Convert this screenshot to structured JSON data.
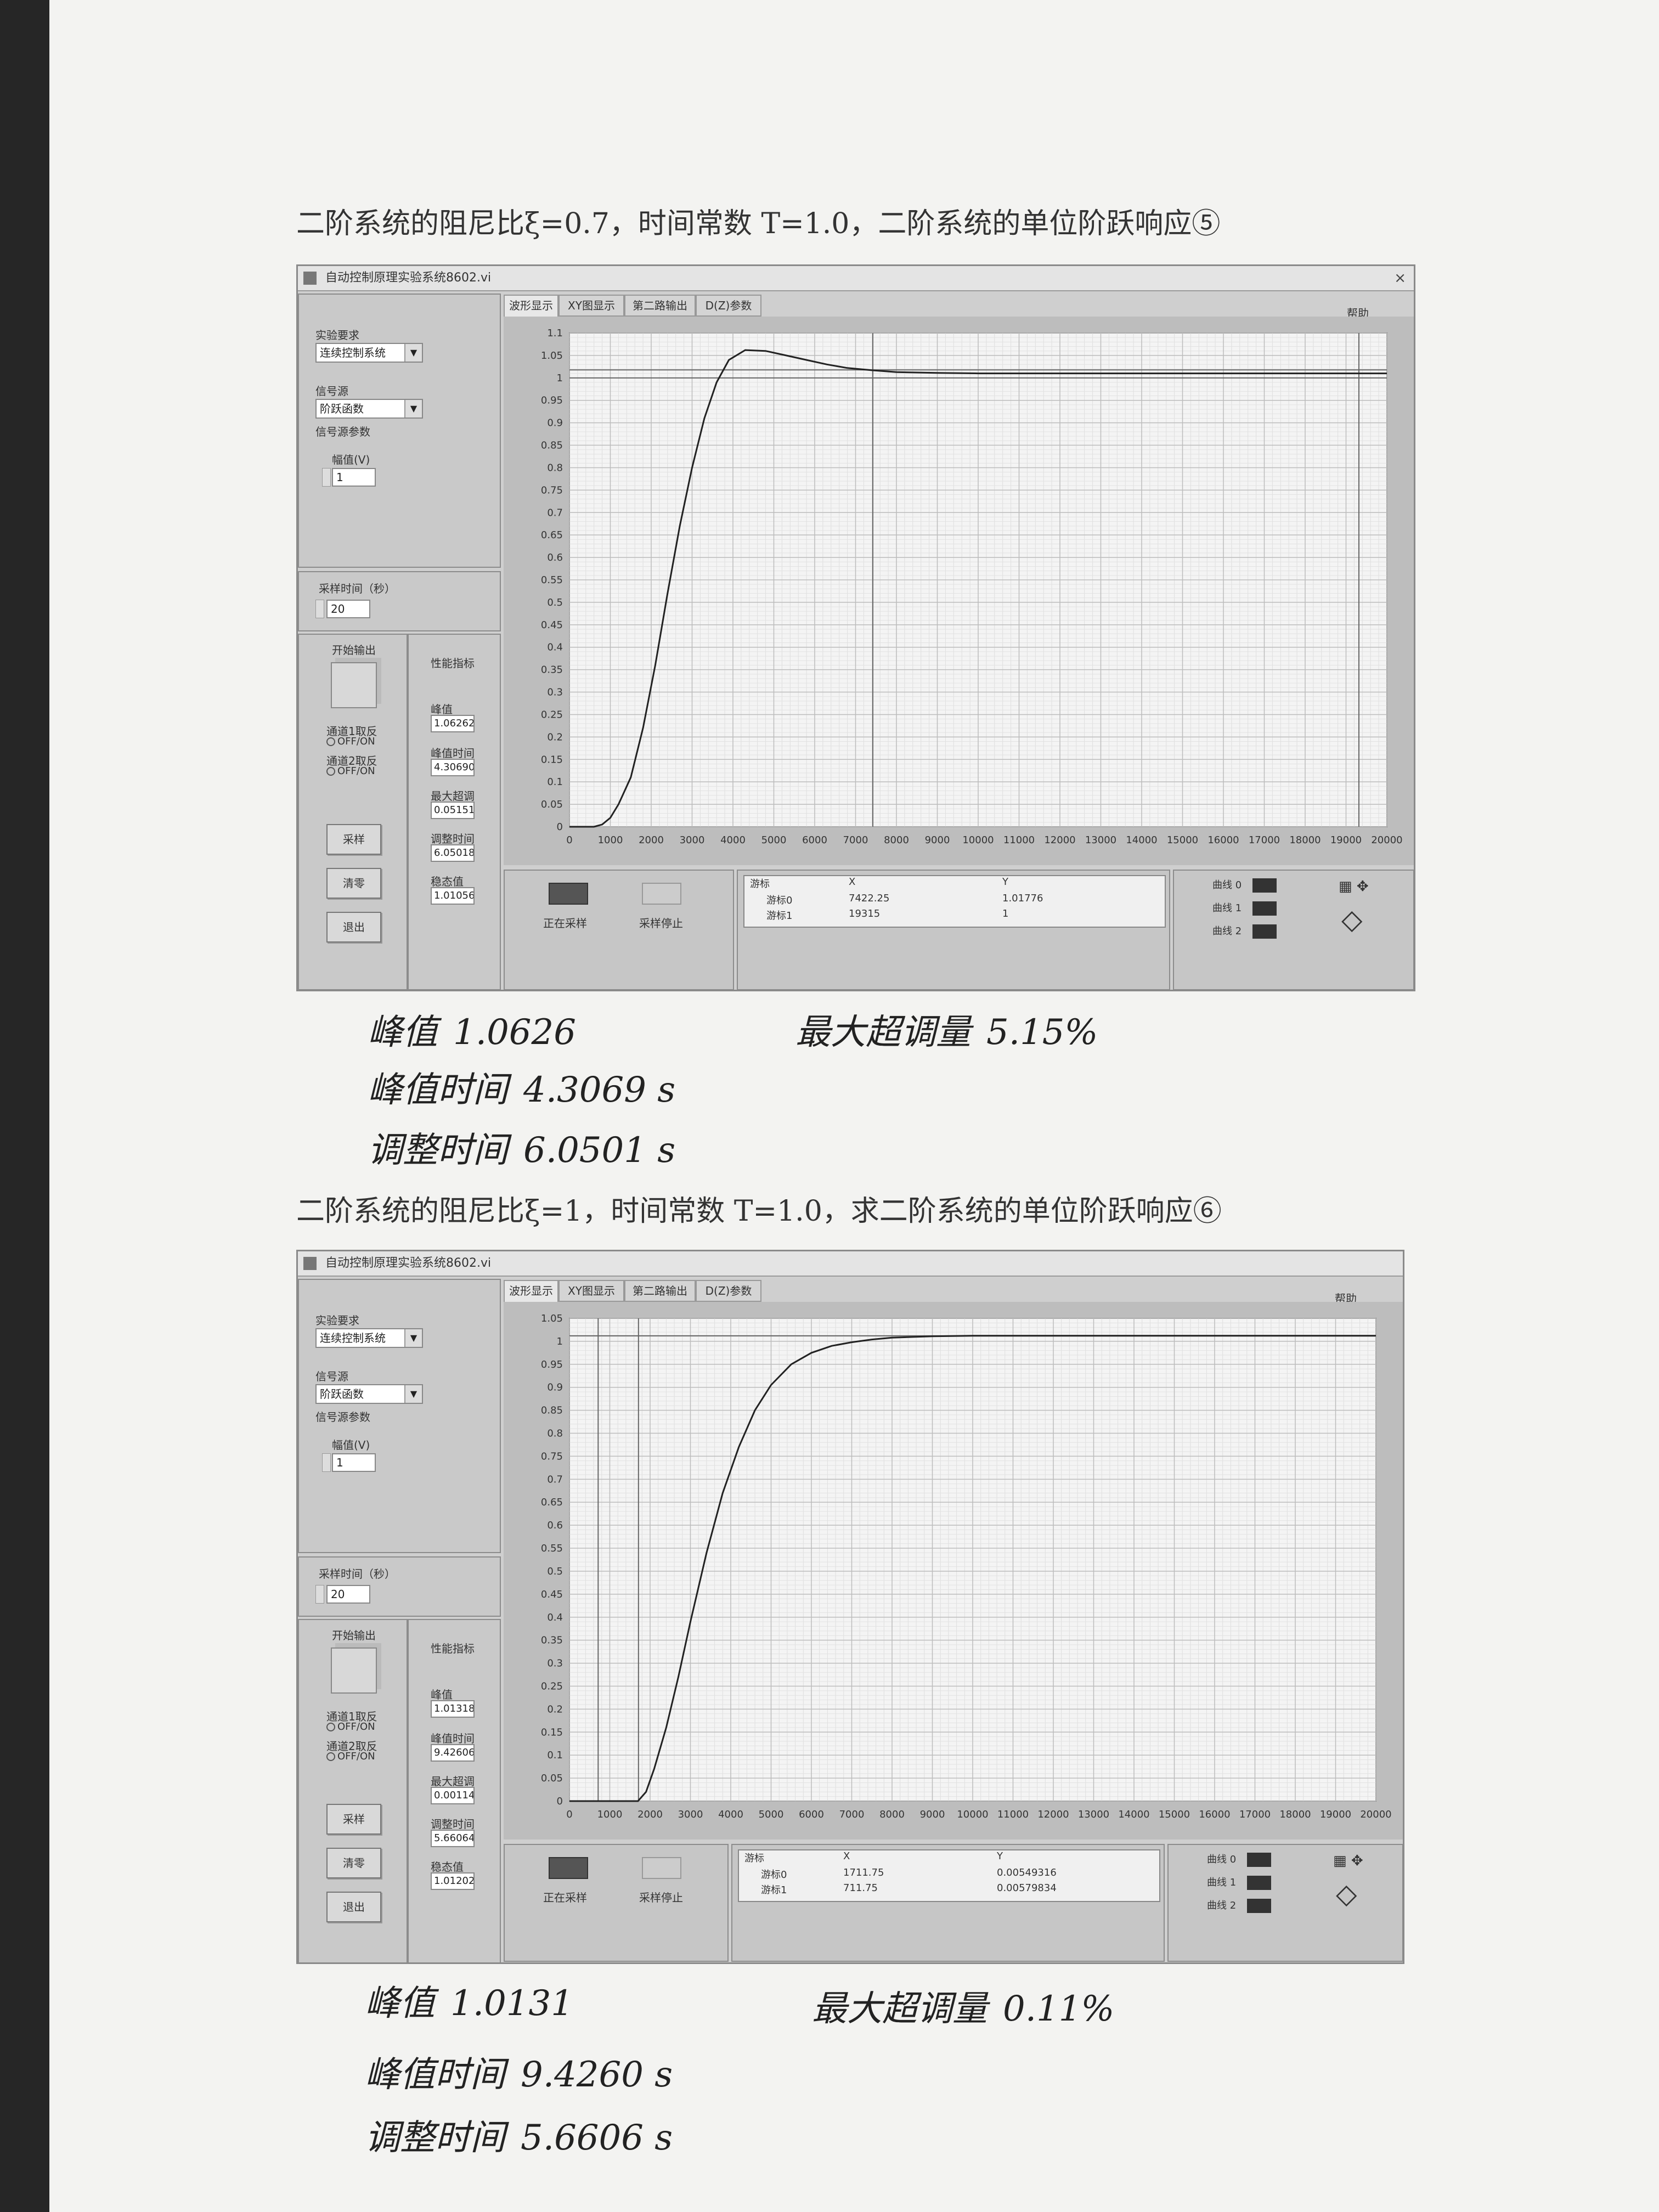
{
  "sections": [
    {
      "heading": "二阶系统的阻尼比ξ=0.7，时间常数 T=1.0，二阶系统的单位阶跃响应⑤",
      "window": {
        "title": "自动控制原理实验系统8602.vi",
        "close": "×",
        "tabs": [
          "波形显示",
          "XY图显示",
          "第二路输出",
          "D(Z)参数"
        ],
        "help_label": "帮助",
        "experiment_label": "实验要求",
        "experiment_value": "连续控制系统",
        "source_label": "信号源",
        "source_value": "阶跃函数",
        "source_params_label": "信号源参数",
        "amplitude_label": "幅值(V)",
        "amplitude_value": "1",
        "sample_time_label": "采样时间（秒）",
        "sample_time_value": "20",
        "start_output_label": "开始输出",
        "ch1_label": "通道1取反",
        "ch1_toggle": "OFF/ON",
        "ch2_label": "通道2取反",
        "ch2_toggle": "OFF/ON",
        "buttons": [
          "采样",
          "清零",
          "退出"
        ],
        "metrics_title": "性能指标",
        "metrics": [
          {
            "label": "峰值",
            "value": "1.06262"
          },
          {
            "label": "峰值时间",
            "value": "4.30690"
          },
          {
            "label": "最大超调",
            "value": "0.05151"
          },
          {
            "label": "调整时间",
            "value": "6.05018"
          },
          {
            "label": "稳态值",
            "value": "1.01056"
          }
        ],
        "status_sampling": "正在采样",
        "status_stop": "采样停止",
        "cursor_header": [
          "游标",
          "X",
          "Y"
        ],
        "cursor_rows": [
          {
            "name": "游标0",
            "x": "7422.25",
            "y": "1.01776"
          },
          {
            "name": "游标1",
            "x": "19315",
            "y": "1"
          }
        ],
        "curves": [
          "曲线 0",
          "曲线 1",
          "曲线 2"
        ]
      },
      "chart_data": {
        "type": "line",
        "title": "",
        "xlabel": "",
        "ylabel": "",
        "xlim": [
          0,
          20000
        ],
        "ylim": [
          0,
          1.1
        ],
        "grid": true,
        "xticks": [
          0,
          1000,
          2000,
          3000,
          4000,
          5000,
          6000,
          7000,
          8000,
          9000,
          10000,
          11000,
          12000,
          13000,
          14000,
          15000,
          16000,
          17000,
          18000,
          19000,
          20000
        ],
        "yticks": [
          0,
          0.05,
          0.1,
          0.15,
          0.2,
          0.25,
          0.3,
          0.35,
          0.4,
          0.45,
          0.5,
          0.55,
          0.6,
          0.65,
          0.7,
          0.75,
          0.8,
          0.85,
          0.9,
          0.95,
          1,
          1.05,
          1.1
        ],
        "series": [
          {
            "x": [
              0,
              600,
              800,
              1000,
              1200,
              1500,
              1800,
              2100,
              2400,
              2700,
              3000,
              3300,
              3600,
              3900,
              4300,
              4800,
              5300,
              5800,
              6300,
              6800,
              7400,
              8000,
              9000,
              10000,
              12000,
              14000,
              16000,
              18000,
              20000
            ],
            "y": [
              0,
              0,
              0.005,
              0.02,
              0.05,
              0.11,
              0.22,
              0.36,
              0.52,
              0.67,
              0.8,
              0.91,
              0.99,
              1.04,
              1.062,
              1.06,
              1.05,
              1.04,
              1.03,
              1.022,
              1.017,
              1.013,
              1.011,
              1.01,
              1.01,
              1.01,
              1.01,
              1.01,
              1.01
            ]
          }
        ],
        "cursors_x": [
          7422.25,
          19315
        ],
        "reference_y": [
          1.01776,
          1
        ]
      },
      "notes": [
        {
          "key": "峰值",
          "value": "1.0626"
        },
        {
          "key": "峰值时间",
          "value": "4.3069 s"
        },
        {
          "key": "调整时间",
          "value": "6.0501 s"
        },
        {
          "key": "最大超调量",
          "value": "5.15%"
        }
      ]
    },
    {
      "heading": "二阶系统的阻尼比ξ=1，时间常数 T=1.0，求二阶系统的单位阶跃响应⑥",
      "window": {
        "title": "自动控制原理实验系统8602.vi",
        "close": "",
        "tabs": [
          "波形显示",
          "XY图显示",
          "第二路输出",
          "D(Z)参数"
        ],
        "help_label": "帮助",
        "experiment_label": "实验要求",
        "experiment_value": "连续控制系统",
        "source_label": "信号源",
        "source_value": "阶跃函数",
        "source_params_label": "信号源参数",
        "amplitude_label": "幅值(V)",
        "amplitude_value": "1",
        "sample_time_label": "采样时间（秒）",
        "sample_time_value": "20",
        "start_output_label": "开始输出",
        "ch1_label": "通道1取反",
        "ch1_toggle": "OFF/ON",
        "ch2_label": "通道2取反",
        "ch2_toggle": "OFF/ON",
        "buttons": [
          "采样",
          "清零",
          "退出"
        ],
        "metrics_title": "性能指标",
        "metrics": [
          {
            "label": "峰值",
            "value": "1.01318"
          },
          {
            "label": "峰值时间",
            "value": "9.42606"
          },
          {
            "label": "最大超调",
            "value": "0.00114"
          },
          {
            "label": "调整时间",
            "value": "5.66064"
          },
          {
            "label": "稳态值",
            "value": "1.01202"
          }
        ],
        "status_sampling": "正在采样",
        "status_stop": "采样停止",
        "cursor_header": [
          "游标",
          "X",
          "Y"
        ],
        "cursor_rows": [
          {
            "name": "游标0",
            "x": "1711.75",
            "y": "0.00549316"
          },
          {
            "name": "游标1",
            "x": "711.75",
            "y": "0.00579834"
          }
        ],
        "curves": [
          "曲线 0",
          "曲线 1",
          "曲线 2"
        ]
      },
      "chart_data": {
        "type": "line",
        "title": "",
        "xlabel": "",
        "ylabel": "",
        "xlim": [
          0,
          20000
        ],
        "ylim": [
          0,
          1.05
        ],
        "grid": true,
        "xticks": [
          0,
          1000,
          2000,
          3000,
          4000,
          5000,
          6000,
          7000,
          8000,
          9000,
          10000,
          11000,
          12000,
          13000,
          14000,
          15000,
          16000,
          17000,
          18000,
          19000,
          20000
        ],
        "yticks": [
          0,
          0.05,
          0.1,
          0.15,
          0.2,
          0.25,
          0.3,
          0.35,
          0.4,
          0.45,
          0.5,
          0.55,
          0.6,
          0.65,
          0.7,
          0.75,
          0.8,
          0.85,
          0.9,
          0.95,
          1,
          1.05
        ],
        "series": [
          {
            "x": [
              0,
              1700,
              1900,
              2100,
              2400,
              2700,
              3000,
              3400,
              3800,
              4200,
              4600,
              5000,
              5500,
              6000,
              6500,
              7000,
              7500,
              8000,
              9000,
              10000,
              12000,
              14000,
              16000,
              18000,
              20000
            ],
            "y": [
              0,
              0,
              0.02,
              0.07,
              0.16,
              0.27,
              0.39,
              0.54,
              0.67,
              0.77,
              0.85,
              0.905,
              0.95,
              0.975,
              0.99,
              0.998,
              1.004,
              1.008,
              1.011,
              1.012,
              1.012,
              1.012,
              1.012,
              1.012,
              1.012
            ]
          }
        ],
        "cursors_x": [
          711.75,
          1711.75
        ],
        "reference_y": [
          1.012
        ]
      },
      "notes": [
        {
          "key": "峰值",
          "value": "1.0131"
        },
        {
          "key": "峰值时间",
          "value": "9.4260 s"
        },
        {
          "key": "调整时间",
          "value": "5.6606 s"
        },
        {
          "key": "最大超调量",
          "value": "0.11%"
        }
      ]
    }
  ]
}
